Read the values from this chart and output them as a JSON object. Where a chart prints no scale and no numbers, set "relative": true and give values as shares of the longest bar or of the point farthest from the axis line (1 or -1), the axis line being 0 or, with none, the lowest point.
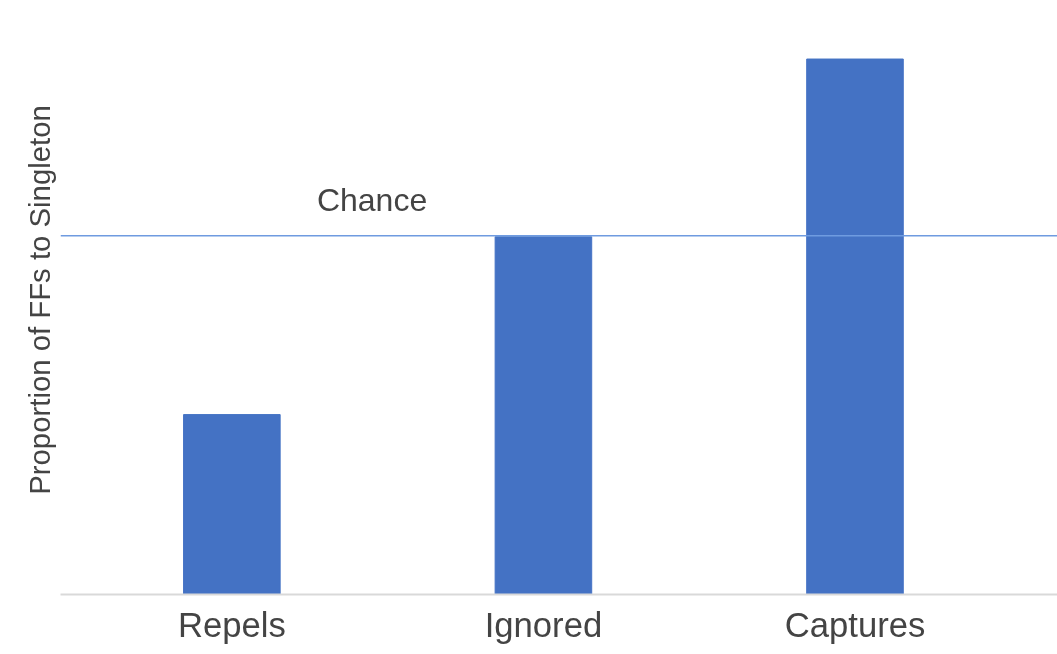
{
  "chart_data": {
    "type": "bar",
    "ylabel": "Proportion of FFs to Singleton",
    "relative": true,
    "categories": [
      "Repels",
      "Ignored",
      "Captures"
    ],
    "values": [
      0.336,
      0.668,
      1
    ],
    "color": "#4472c4",
    "ref_lines": [
      {
        "axis": "y",
        "value": 0.67,
        "label": "Chance",
        "color": "#6f9be0"
      }
    ],
    "grid": false
  }
}
